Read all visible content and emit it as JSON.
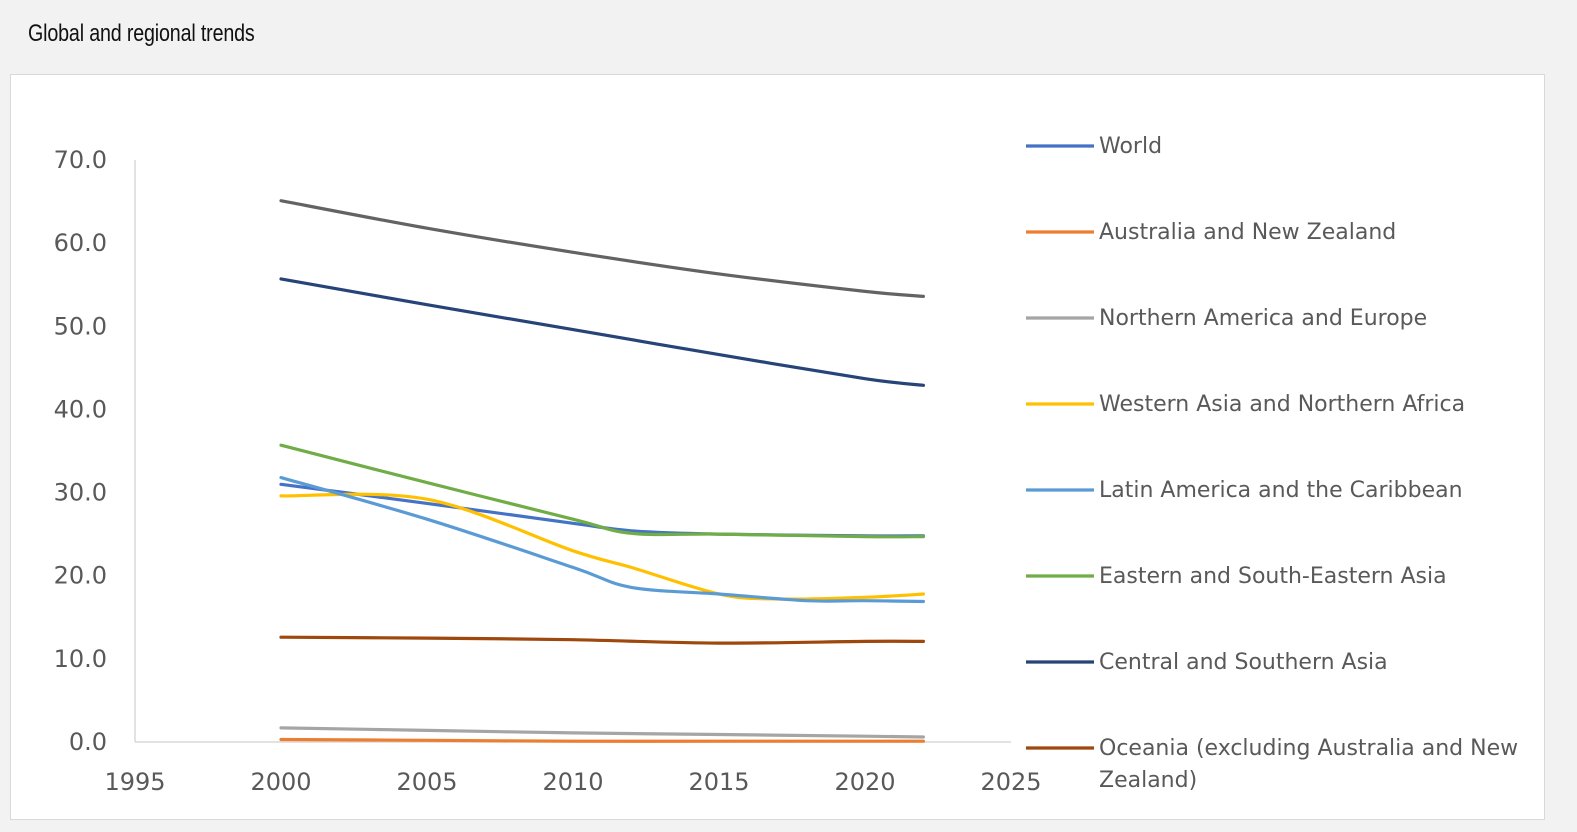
{
  "header": {
    "title": "Global and regional trends"
  },
  "chart_data": {
    "type": "line",
    "xlim": [
      1995,
      2025
    ],
    "ylim": [
      0,
      70
    ],
    "x_ticks": [
      "1995",
      "2000",
      "2005",
      "2010",
      "2015",
      "2020",
      "2025"
    ],
    "y_ticks": [
      "0.0",
      "10.0",
      "20.0",
      "30.0",
      "40.0",
      "50.0",
      "60.0",
      "70.0"
    ],
    "grid": false,
    "legend_position": "right",
    "series": [
      {
        "name": "World",
        "color": "#4472c4",
        "x": [
          2000,
          2005,
          2010,
          2012,
          2015,
          2020,
          2022
        ],
        "y": [
          31.0,
          28.7,
          26.3,
          25.4,
          25.0,
          24.8,
          24.8
        ]
      },
      {
        "name": "Australia and New Zealand",
        "color": "#ed7d31",
        "x": [
          2000,
          2005,
          2010,
          2015,
          2020,
          2022
        ],
        "y": [
          0.3,
          0.2,
          0.1,
          0.1,
          0.1,
          0.1
        ]
      },
      {
        "name": "Northern America and Europe",
        "color": "#a5a5a5",
        "x": [
          2000,
          2005,
          2010,
          2015,
          2020,
          2022
        ],
        "y": [
          1.7,
          1.4,
          1.1,
          0.9,
          0.7,
          0.6
        ]
      },
      {
        "name": "Western Asia and Northern Africa",
        "color": "#ffc000",
        "x": [
          2000,
          2005,
          2010,
          2012,
          2015,
          2017,
          2020,
          2022
        ],
        "y": [
          29.6,
          29.2,
          23.0,
          21.0,
          17.8,
          17.2,
          17.4,
          17.8
        ]
      },
      {
        "name": "Latin America and the Caribbean",
        "color": "#5b9bd5",
        "x": [
          2000,
          2005,
          2010,
          2012,
          2015,
          2018,
          2020,
          2022
        ],
        "y": [
          31.8,
          26.8,
          21.0,
          18.6,
          17.8,
          17.0,
          17.0,
          16.9
        ]
      },
      {
        "name": "Eastern and South-Eastern Asia",
        "color": "#70ad47",
        "x": [
          2000,
          2005,
          2010,
          2012,
          2015,
          2020,
          2022
        ],
        "y": [
          35.7,
          31.2,
          26.8,
          25.1,
          25.0,
          24.7,
          24.7
        ]
      },
      {
        "name": "Central and Southern Asia",
        "color": "#264478",
        "x": [
          2000,
          2005,
          2010,
          2015,
          2020,
          2022
        ],
        "y": [
          55.7,
          52.6,
          49.6,
          46.6,
          43.7,
          42.9
        ]
      },
      {
        "name": "Oceania (excluding Australia and New Zealand)",
        "color": "#9e480e",
        "x": [
          2000,
          2005,
          2010,
          2015,
          2020,
          2022
        ],
        "y": [
          12.6,
          12.5,
          12.3,
          11.9,
          12.1,
          12.1
        ]
      },
      {
        "name": "",
        "color": "#636363",
        "x": [
          2000,
          2005,
          2010,
          2015,
          2020,
          2022
        ],
        "y": [
          65.1,
          61.8,
          58.9,
          56.3,
          54.2,
          53.6
        ]
      }
    ]
  }
}
